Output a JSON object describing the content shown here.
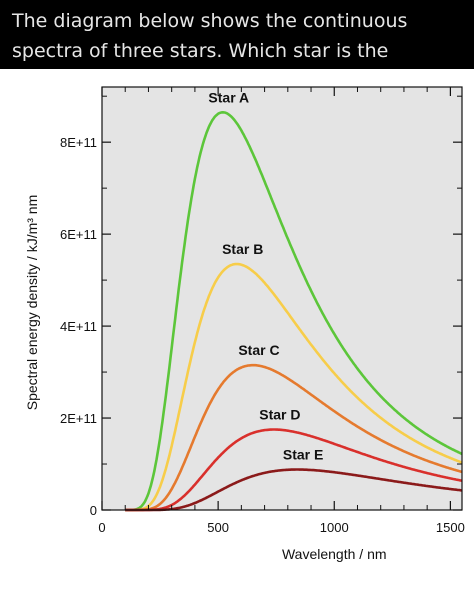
{
  "question": {
    "text": "The diagram below shows the continuous spectra of three stars. Which star is the coolest?"
  },
  "chart_data": {
    "type": "line",
    "title": "",
    "xlabel": "Wavelength / nm",
    "ylabel": "Spectral energy density / kJ/m³ nm",
    "xlim": [
      0,
      1550
    ],
    "ylim": [
      0,
      920000000000.0
    ],
    "x_ticks": [
      {
        "value": 0,
        "label": "0"
      },
      {
        "value": 500,
        "label": "500"
      },
      {
        "value": 1000,
        "label": "1000"
      },
      {
        "value": 1500,
        "label": "1500"
      }
    ],
    "y_ticks": [
      {
        "value": 0,
        "label": "0"
      },
      {
        "value": 200000000000.0,
        "label": "2E+11"
      },
      {
        "value": 400000000000.0,
        "label": "4E+11"
      },
      {
        "value": 600000000000.0,
        "label": "6E+11"
      },
      {
        "value": 800000000000.0,
        "label": "8E+11"
      }
    ],
    "plot_background": "#e4e4e4",
    "grid": false,
    "series": [
      {
        "name": "Star A",
        "color": "#5cc63a",
        "peak_x": 520,
        "peak_y": 865000000000.0
      },
      {
        "name": "Star B",
        "color": "#f7cd4a",
        "peak_x": 580,
        "peak_y": 535000000000.0
      },
      {
        "name": "Star C",
        "color": "#e57a2e",
        "peak_x": 650,
        "peak_y": 315000000000.0
      },
      {
        "name": "Star D",
        "color": "#d9302c",
        "peak_x": 740,
        "peak_y": 175000000000.0
      },
      {
        "name": "Star E",
        "color": "#8b1a1a",
        "peak_x": 840,
        "peak_y": 88000000000.0
      }
    ]
  }
}
